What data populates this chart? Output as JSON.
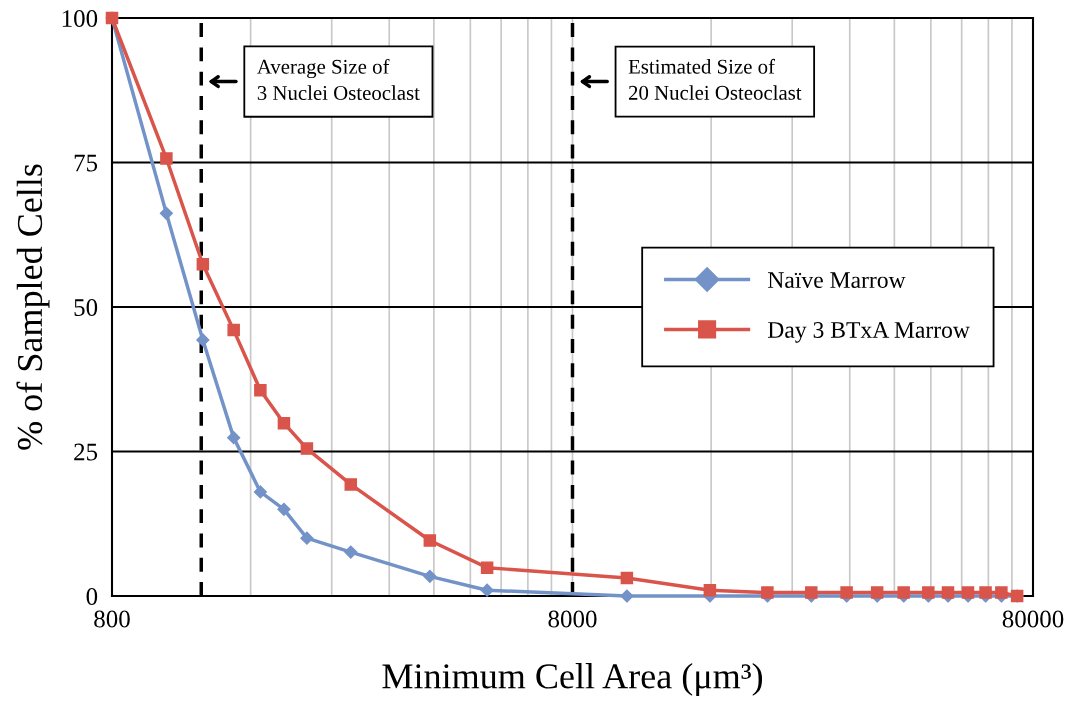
{
  "chart_data": {
    "type": "line",
    "xlabel": "Minimum Cell Area (μm³)",
    "ylabel": "% of Sampled Cells",
    "x": [
      800,
      1050,
      1260,
      1470,
      1680,
      1890,
      2120,
      2640,
      3920,
      5220,
      10500,
      15900,
      21200,
      26400,
      31500,
      36700,
      41900,
      47400,
      52300,
      57800,
      63100,
      68300,
      73900
    ],
    "series": [
      {
        "name": "Naïve Marrow",
        "color": "#7393c8",
        "marker": "diamond",
        "values": [
          100,
          66.2,
          44.3,
          27.4,
          18.0,
          15.0,
          10.0,
          7.6,
          3.4,
          1.0,
          0,
          0,
          0,
          0,
          0,
          0,
          0,
          0,
          0,
          0,
          0,
          0,
          0
        ]
      },
      {
        "name": "Day 3 BTxA Marrow",
        "color": "#d9544a",
        "marker": "square",
        "values": [
          100,
          75.7,
          57.4,
          46.0,
          35.6,
          29.9,
          25.5,
          19.3,
          9.6,
          4.9,
          3.1,
          1.0,
          0.6,
          0.6,
          0.6,
          0.6,
          0.6,
          0.6,
          0.6,
          0.6,
          0.6,
          0.6,
          0
        ]
      }
    ],
    "log": "x",
    "xlim": [
      800,
      80000
    ],
    "xticks": [
      800,
      {
        "value": 1600,
        "label": null
      },
      {
        "value": 2400,
        "label": null
      },
      {
        "value": 3200,
        "label": null
      },
      {
        "value": 4000,
        "label": null
      },
      {
        "value": 4800,
        "label": null
      },
      {
        "value": 5600,
        "label": null
      },
      {
        "value": 6400,
        "label": null
      },
      {
        "value": 7200,
        "label": null
      },
      8000,
      {
        "value": 16000,
        "label": null
      },
      {
        "value": 24000,
        "label": null
      },
      {
        "value": 32000,
        "label": null
      },
      {
        "value": 40000,
        "label": null
      },
      {
        "value": 48000,
        "label": null
      },
      {
        "value": 56000,
        "label": null
      },
      {
        "value": 64000,
        "label": null
      },
      {
        "value": 72000,
        "label": null
      },
      80000
    ],
    "ylim": [
      0,
      100
    ],
    "yticks": [
      0,
      25,
      50,
      75,
      100
    ],
    "grid": true,
    "legend": "right",
    "line_style": "solid",
    "ref_lines": [
      {
        "axis": "x",
        "value": 1250,
        "label": "Average Size of\n3 Nuclei Osteoclast",
        "color": "#000000",
        "line_style": "dashed"
      },
      {
        "axis": "x",
        "value": 8000,
        "label": "Estimated Size of\n20 Nuclei Osteoclast",
        "color": "#000000",
        "line_style": "dashed"
      }
    ]
  }
}
